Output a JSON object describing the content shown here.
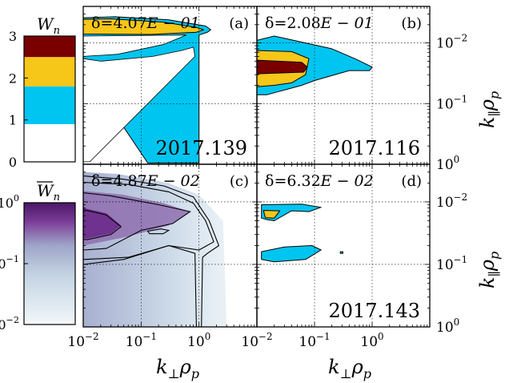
{
  "colors": {
    "level_0": "#ffffff",
    "level_1": "#00c5f0",
    "level_2": "#f6c619",
    "level_3": "#7a0000",
    "mean_dark": "#6a2a8a",
    "mean_light": "#eef4f8",
    "grid": "#999999"
  },
  "colorbar_discrete": {
    "label_main": "W",
    "label_sub": "n",
    "ticks": [
      "3",
      "2",
      "1",
      "0"
    ]
  },
  "colorbar_continuous": {
    "label_main": "W",
    "label_sub": "n",
    "ticks": [
      {
        "base": "10",
        "exp": "0"
      },
      {
        "base": "10",
        "exp": "−1"
      },
      {
        "base": "10",
        "exp": "−2"
      }
    ]
  },
  "panels": [
    {
      "id": "a",
      "letter": "(a)",
      "delta_label": "δ=4.07",
      "delta_exp": "E − 01",
      "date": "2017.139"
    },
    {
      "id": "b",
      "letter": "(b)",
      "delta_label": "δ=2.08",
      "delta_exp": "E − 01",
      "date": "2017.116"
    },
    {
      "id": "c",
      "letter": "(c)",
      "delta_label": "δ=4.87",
      "delta_exp": "E − 02",
      "date": ""
    },
    {
      "id": "d",
      "letter": "(d)",
      "delta_label": "δ=6.32",
      "delta_exp": "E − 02",
      "date": "2017.143"
    }
  ],
  "axes": {
    "xlabel_main": "k",
    "xlabel_sub": "⊥",
    "xlabel_rho": "ρ",
    "xlabel_rho_sub": "p",
    "ylabel_main": "k",
    "ylabel_sub": "∥",
    "ylabel_rho": "ρ",
    "ylabel_rho_sub": "p",
    "x_ticks": [
      {
        "base": "10",
        "exp": "−2"
      },
      {
        "base": "10",
        "exp": "−1"
      },
      {
        "base": "10",
        "exp": "0"
      }
    ],
    "y_ticks": [
      {
        "base": "10",
        "exp": "0"
      },
      {
        "base": "10",
        "exp": "−1"
      },
      {
        "base": "10",
        "exp": "−2"
      }
    ]
  },
  "chart_data": {
    "type": "heatmap",
    "x_scale": "log",
    "y_scale": "log",
    "xlim": [
      0.01,
      10
    ],
    "ylim": [
      0.01,
      4
    ],
    "x_ticks": [
      0.01,
      0.1,
      1
    ],
    "y_ticks": [
      0.01,
      0.1,
      1
    ],
    "grid": true,
    "levels": [
      0,
      1,
      2,
      3
    ],
    "panels": [
      {
        "id": "a",
        "regions": [
          {
            "level": 1,
            "points": [
              [
                0.01,
                2.6
              ],
              [
                0.035,
                2.7
              ],
              [
                0.3,
                2.4
              ],
              [
                1.3,
                1.9
              ],
              [
                1.6,
                1.65
              ],
              [
                1.4,
                1.5
              ],
              [
                1.0,
                1.35
              ],
              [
                1.0,
                0.0105
              ],
              [
                0.13,
                0.0105
              ],
              [
                0.01,
                0.4
              ]
            ]
          },
          {
            "level": 0,
            "points": [
              [
                0.01,
                0.55
              ],
              [
                0.02,
                0.5
              ],
              [
                0.16,
                0.6
              ],
              [
                0.5,
                0.75
              ],
              [
                0.8,
                0.85
              ],
              [
                0.85,
                0.6
              ],
              [
                0.013,
                0.011
              ],
              [
                0.01,
                0.011
              ]
            ]
          },
          {
            "level": 0,
            "points": [
              [
                0.01,
                0.6
              ],
              [
                0.04,
                0.65
              ],
              [
                0.25,
                0.95
              ],
              [
                0.6,
                1.35
              ],
              [
                0.01,
                1.3
              ]
            ]
          },
          {
            "level": 2,
            "points": [
              [
                0.01,
                2.45
              ],
              [
                0.03,
                2.5
              ],
              [
                0.25,
                2.2
              ],
              [
                0.9,
                1.8
              ],
              [
                1.2,
                1.65
              ],
              [
                0.9,
                1.5
              ],
              [
                0.15,
                1.38
              ],
              [
                0.01,
                1.4
              ]
            ]
          }
        ]
      },
      {
        "id": "b",
        "regions": [
          {
            "level": 1,
            "points": [
              [
                0.01,
                1.1
              ],
              [
                0.02,
                1.3
              ],
              [
                0.07,
                1.0
              ],
              [
                0.2,
                0.8
              ],
              [
                0.5,
                0.55
              ],
              [
                1.0,
                0.4
              ],
              [
                0.9,
                0.35
              ],
              [
                0.4,
                0.35
              ],
              [
                0.1,
                0.24
              ],
              [
                0.06,
                0.2
              ],
              [
                0.015,
                0.14
              ],
              [
                0.01,
                0.14
              ]
            ]
          },
          {
            "level": 2,
            "points": [
              [
                0.01,
                0.75
              ],
              [
                0.04,
                0.72
              ],
              [
                0.08,
                0.55
              ],
              [
                0.07,
                0.3
              ],
              [
                0.04,
                0.22
              ],
              [
                0.02,
                0.2
              ],
              [
                0.01,
                0.19
              ]
            ]
          },
          {
            "level": 3,
            "points": [
              [
                0.01,
                0.52
              ],
              [
                0.06,
                0.48
              ],
              [
                0.075,
                0.4
              ],
              [
                0.065,
                0.33
              ],
              [
                0.01,
                0.31
              ]
            ]
          }
        ]
      },
      {
        "id": "c",
        "contours": [
          {
            "points": [
              [
                0.01,
                2.6
              ],
              [
                0.05,
                2.3
              ],
              [
                0.25,
                1.8
              ],
              [
                0.8,
                1.2
              ],
              [
                1.5,
                0.5
              ],
              [
                2.2,
                0.2
              ],
              [
                1.4,
                0.15
              ],
              [
                1.15,
                0.13
              ],
              [
                1.1,
                0.01
              ],
              [
                0.9,
                0.01
              ],
              [
                0.85,
                0.15
              ],
              [
                0.3,
                0.2
              ],
              [
                0.05,
                0.12
              ],
              [
                0.01,
                0.1
              ]
            ]
          },
          {
            "points": [
              [
                0.01,
                2.05
              ],
              [
                0.06,
                1.9
              ],
              [
                0.3,
                1.45
              ],
              [
                0.8,
                0.95
              ],
              [
                1.3,
                0.5
              ],
              [
                1.8,
                0.23
              ],
              [
                1.0,
                0.17
              ],
              [
                0.3,
                0.2
              ],
              [
                0.06,
                0.13
              ],
              [
                0.01,
                0.12
              ]
            ]
          },
          {
            "points": [
              [
                0.01,
                1.4
              ],
              [
                0.03,
                1.25
              ],
              [
                0.2,
                0.9
              ],
              [
                0.7,
                0.7
              ],
              [
                0.35,
                0.45
              ],
              [
                0.1,
                0.35
              ],
              [
                0.025,
                0.18
              ],
              [
                0.01,
                0.17
              ]
            ]
          },
          {
            "points": [
              [
                0.01,
                0.75
              ],
              [
                0.025,
                0.62
              ],
              [
                0.045,
                0.4
              ],
              [
                0.03,
                0.3
              ],
              [
                0.012,
                0.25
              ],
              [
                0.01,
                0.25
              ]
            ]
          },
          {
            "points": [
              [
                0.13,
                0.34
              ],
              [
                0.22,
                0.37
              ],
              [
                0.3,
                0.35
              ],
              [
                0.24,
                0.31
              ],
              [
                0.14,
                0.31
              ]
            ]
          }
        ]
      },
      {
        "id": "d",
        "regions": [
          {
            "level": 1,
            "points": [
              [
                0.012,
                0.9
              ],
              [
                0.06,
                0.92
              ],
              [
                0.13,
                0.82
              ],
              [
                0.08,
                0.7
              ],
              [
                0.04,
                0.72
              ],
              [
                0.02,
                0.5
              ],
              [
                0.015,
                0.52
              ],
              [
                0.012,
                0.55
              ]
            ]
          },
          {
            "level": 2,
            "points": [
              [
                0.013,
                0.73
              ],
              [
                0.025,
                0.72
              ],
              [
                0.02,
                0.55
              ],
              [
                0.014,
                0.56
              ]
            ]
          },
          {
            "level": 1,
            "points": [
              [
                0.012,
                0.16
              ],
              [
                0.03,
                0.19
              ],
              [
                0.09,
                0.2
              ],
              [
                0.13,
                0.17
              ],
              [
                0.07,
                0.12
              ],
              [
                0.02,
                0.11
              ],
              [
                0.012,
                0.12
              ]
            ]
          },
          {
            "level": 1,
            "points": [
              [
                0.28,
                0.16
              ],
              [
                0.31,
                0.16
              ],
              [
                0.31,
                0.15
              ],
              [
                0.28,
                0.15
              ]
            ]
          }
        ]
      }
    ]
  }
}
